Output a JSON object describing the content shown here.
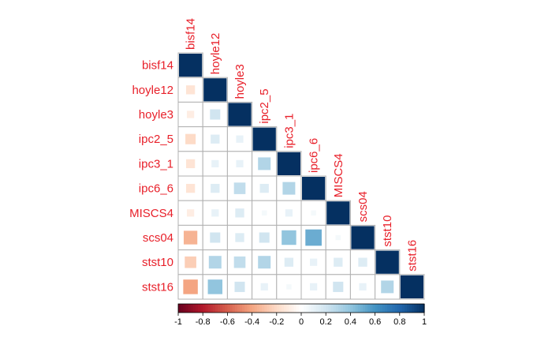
{
  "chart_data": {
    "type": "heatmap",
    "subtype": "correlation-matrix-lower-square",
    "variables": [
      "bisf14",
      "hoyle12",
      "hoyle3",
      "ipc2_5",
      "ipc3_1",
      "ipc6_6",
      "MISCS4",
      "scs04",
      "stst10",
      "stst16"
    ],
    "matrix_lower": [
      [
        1
      ],
      [
        -0.15,
        1
      ],
      [
        -0.1,
        0.2,
        1
      ],
      [
        -0.2,
        0.15,
        0.1,
        1
      ],
      [
        -0.15,
        0.1,
        0.1,
        0.3,
        1
      ],
      [
        -0.15,
        0.15,
        0.25,
        0.15,
        0.3,
        1
      ],
      [
        -0.1,
        0.1,
        0.15,
        0.05,
        0.1,
        0.05,
        1
      ],
      [
        -0.35,
        0.2,
        0.15,
        0.2,
        0.4,
        0.5,
        0.05,
        1
      ],
      [
        -0.25,
        0.3,
        0.25,
        0.3,
        0.15,
        0.1,
        0.15,
        0.15,
        1
      ],
      [
        -0.4,
        0.4,
        0.2,
        0.1,
        0.05,
        0.1,
        0.2,
        0.1,
        0.3,
        1
      ]
    ],
    "colorbar": {
      "range": [
        -1,
        1
      ],
      "ticks": [
        "-1",
        "-0.8",
        "-0.6",
        "-0.4",
        "-0.2",
        "0",
        "0.2",
        "0.4",
        "0.6",
        "0.8",
        "1"
      ]
    },
    "label_color": "#e8202a",
    "palette": [
      "#67001f",
      "#b2182b",
      "#d6604d",
      "#f4a582",
      "#fddbc7",
      "#ffffff",
      "#d1e5f0",
      "#92c5de",
      "#4393c3",
      "#2166ac",
      "#053061"
    ],
    "grid_color": "#b0b0b0"
  }
}
